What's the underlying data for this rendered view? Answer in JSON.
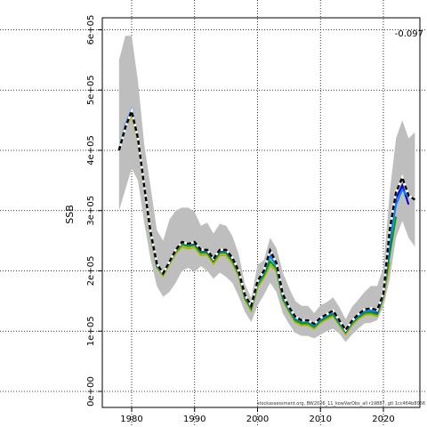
{
  "chart_data": {
    "type": "line",
    "title": "",
    "xlabel": "",
    "ylabel": "SSB",
    "xlim": [
      1977,
      2026
    ],
    "ylim": [
      0,
      610000
    ],
    "grid": true,
    "annotation": "-0.097",
    "footer": "stockassessment.org, BW2026_11_kowVarObs_all r19887, git 1cc464b8066",
    "x_ticks": [
      {
        "value": 1980,
        "label": "1980"
      },
      {
        "value": 1990,
        "label": "1990"
      },
      {
        "value": 2000,
        "label": "2000"
      },
      {
        "value": 2010,
        "label": "2010"
      },
      {
        "value": 2020,
        "label": "2020"
      }
    ],
    "y_ticks": [
      {
        "value": 0,
        "label": "0e+00"
      },
      {
        "value": 100000,
        "label": "1e+05"
      },
      {
        "value": 200000,
        "label": "2e+05"
      },
      {
        "value": 300000,
        "label": "3e+05"
      },
      {
        "value": 400000,
        "label": "4e+05"
      },
      {
        "value": 500000,
        "label": "5e+05"
      },
      {
        "value": 600000,
        "label": "6e+05"
      }
    ],
    "band": {
      "color": "#bebebe",
      "x": [
        1978,
        1979,
        1980,
        1981,
        1982,
        1983,
        1984,
        1985,
        1986,
        1987,
        1988,
        1989,
        1990,
        1991,
        1992,
        1993,
        1994,
        1995,
        1996,
        1997,
        1998,
        1999,
        2000,
        2001,
        2002,
        2003,
        2004,
        2005,
        2006,
        2007,
        2008,
        2009,
        2010,
        2011,
        2012,
        2013,
        2014,
        2015,
        2016,
        2017,
        2018,
        2019,
        2020,
        2021,
        2022,
        2023,
        2024,
        2025
      ],
      "upper": [
        550000,
        590000,
        590000,
        515000,
        410000,
        340000,
        268000,
        250000,
        285000,
        300000,
        305000,
        305000,
        298000,
        275000,
        280000,
        262000,
        278000,
        275000,
        258000,
        228000,
        178000,
        155000,
        210000,
        218000,
        255000,
        238000,
        198000,
        172000,
        150000,
        142000,
        142000,
        130000,
        143000,
        148000,
        156000,
        140000,
        120000,
        140000,
        152000,
        165000,
        175000,
        175000,
        205000,
        330000,
        420000,
        450000,
        420000,
        430000
      ],
      "lower": [
        300000,
        335000,
        370000,
        350000,
        280000,
        220000,
        175000,
        157000,
        165000,
        180000,
        200000,
        205000,
        198000,
        208000,
        200000,
        187000,
        197000,
        190000,
        180000,
        158000,
        132000,
        115000,
        142000,
        160000,
        180000,
        165000,
        130000,
        112000,
        97000,
        92000,
        92000,
        88000,
        94000,
        100000,
        104000,
        96000,
        82000,
        94000,
        104000,
        113000,
        114000,
        118000,
        140000,
        186000,
        255000,
        283000,
        255000,
        240000
      ]
    },
    "series": [
      {
        "color": "#000000",
        "style": "dashed",
        "values": [
          400000,
          438000,
          465000,
          420000,
          340000,
          265000,
          212000,
          196000,
          215000,
          235000,
          248000,
          245000,
          248000,
          235000,
          235000,
          220000,
          235000,
          235000,
          222000,
          200000,
          160000,
          142000,
          183000,
          200000,
          234000,
          213000,
          162000,
          140000,
          124000,
          118000,
          118000,
          112000,
          122000,
          128000,
          134000,
          118000,
          102000,
          117000,
          128000,
          136000,
          138000,
          135000,
          162000,
          268000,
          330000,
          355000,
          325000,
          318000
        ]
      },
      {
        "color": "#0080ff",
        "style": "solid",
        "values": [
          402000,
          442000,
          468000,
          422000,
          340000,
          262000,
          210000,
          196000,
          215000,
          234000,
          247000,
          244000,
          247000,
          234000,
          234000,
          219000,
          234000,
          234000,
          221000,
          199000,
          158000,
          140000,
          180000,
          197000,
          225000,
          208000,
          158000,
          137000,
          121000,
          116000,
          116000,
          109000,
          119000,
          126000,
          131000,
          115000,
          100000,
          115000,
          125000,
          133000,
          134000,
          132000,
          162000,
          248000,
          310000,
          335000,
          322000
        ]
      },
      {
        "color": "#0000cd",
        "style": "solid",
        "values": [
          401000,
          440000,
          466000,
          421000,
          340000,
          263000,
          210000,
          196000,
          215000,
          234000,
          247000,
          244000,
          246000,
          233000,
          233000,
          218000,
          233000,
          233000,
          220000,
          198000,
          158000,
          140000,
          181000,
          198000,
          226000,
          209000,
          158000,
          138000,
          121000,
          116000,
          116000,
          109000,
          119000,
          126000,
          131000,
          115000,
          100000,
          115000,
          125000,
          133000,
          134000,
          131000,
          160000,
          245000,
          320000,
          342000,
          310000
        ]
      },
      {
        "color": "#00a000",
        "style": "solid",
        "values": [
          402000,
          441000,
          463000,
          419000,
          338000,
          260000,
          208000,
          194000,
          213000,
          232000,
          244000,
          241000,
          243000,
          230000,
          230000,
          216000,
          230000,
          230000,
          217000,
          195000,
          155000,
          137000,
          177000,
          193000,
          216000,
          204000,
          155000,
          135000,
          118000,
          113000,
          113000,
          107000,
          117000,
          123000,
          128000,
          113000,
          98000,
          113000,
          123000,
          130000,
          131000,
          128000,
          158000,
          228000,
          290000
        ]
      },
      {
        "color": "#b0b000",
        "style": "solid",
        "values": [
          400000,
          438000,
          458000,
          415000,
          335000,
          258000,
          206000,
          192000,
          211000,
          229000,
          240000,
          237000,
          239000,
          226000,
          227000,
          212000,
          226000,
          226000,
          213000,
          192000,
          152000,
          134000,
          173000,
          189000,
          210000,
          200000,
          151000,
          132000,
          115000,
          110000,
          110000,
          104000,
          114000,
          120000,
          125000,
          110000,
          95000,
          110000,
          120000,
          127000,
          128000,
          125000,
          155000,
          215000
        ]
      }
    ]
  }
}
